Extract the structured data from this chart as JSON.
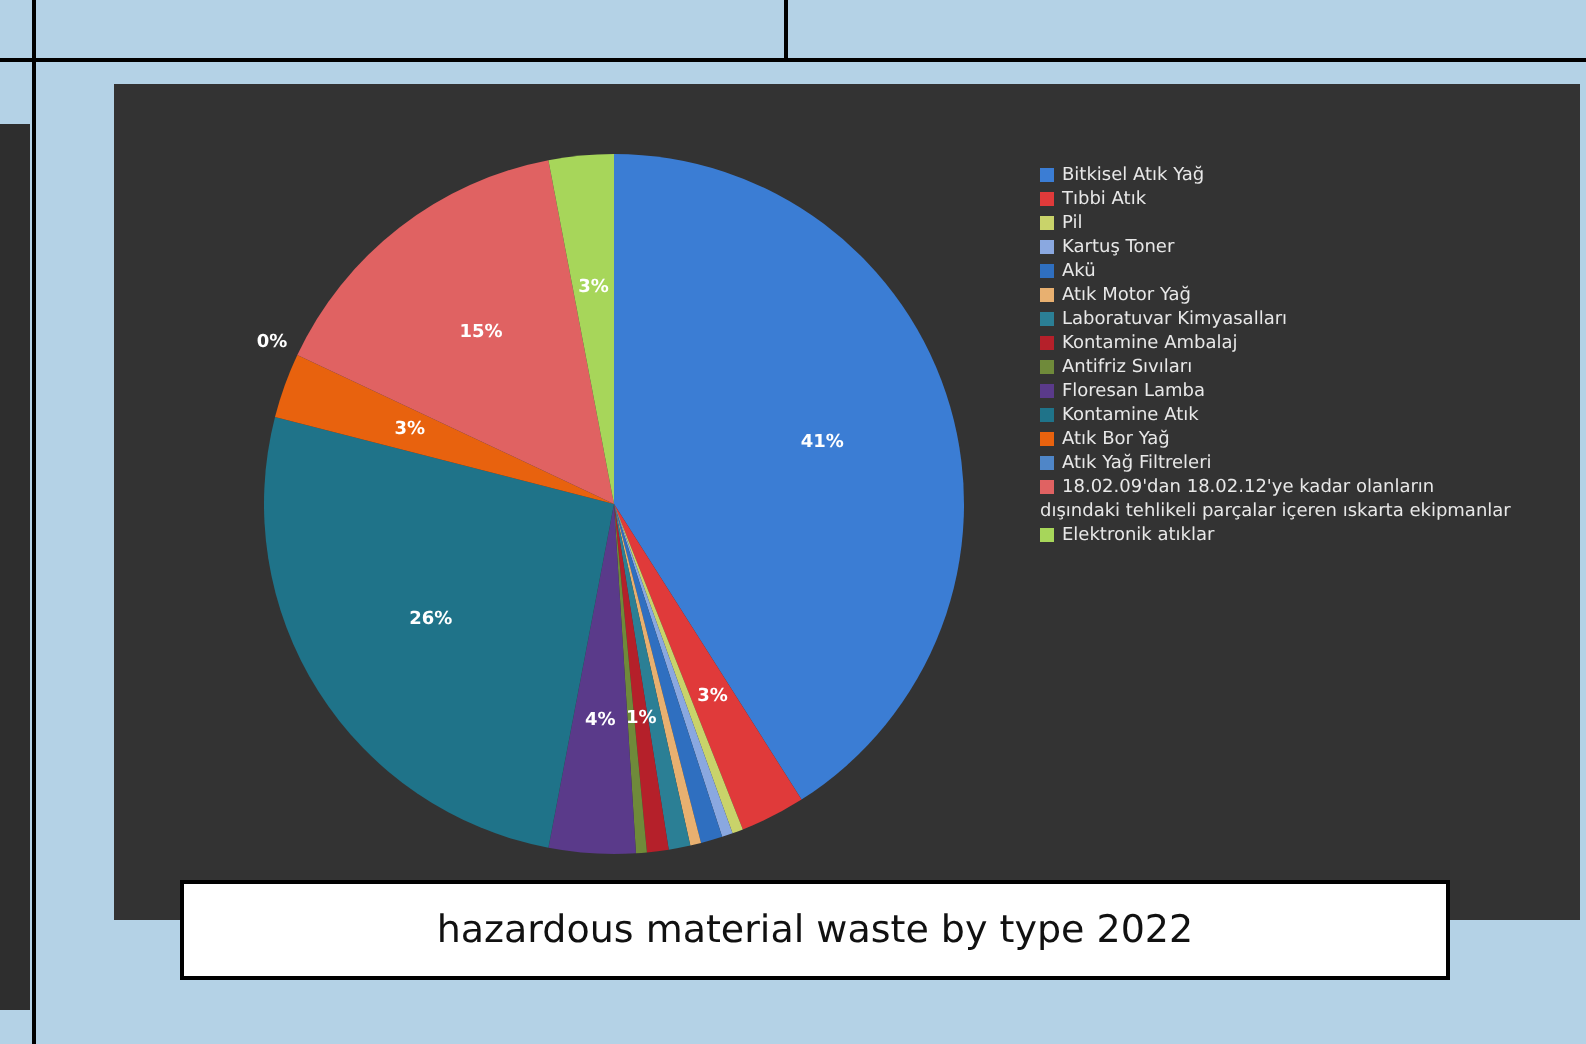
{
  "chart_data": {
    "type": "pie",
    "title": "hazardous material waste by type 2022",
    "legend": "right",
    "categories": [
      "Bitkisel Atık Yağ",
      "Tıbbi Atık",
      "Pil",
      "Kartuş Toner",
      "Akü",
      "Atık Motor Yağ",
      "Laboratuvar Kimyasalları",
      "Kontamine Ambalaj",
      "Antifriz Sıvıları",
      "Floresan Lamba",
      "Kontamine Atık",
      "Atık Bor Yağ",
      "Atık Yağ Filtreleri",
      "18.02.09'dan 18.02.12'ye kadar olanların dışındaki tehlikeli parçalar içeren ıskarta ekipmanlar",
      "Elektronik atıklar"
    ],
    "values": [
      41,
      3,
      0.5,
      0.5,
      1,
      0.5,
      1,
      1,
      0.5,
      4,
      26,
      3,
      0,
      15,
      3
    ],
    "value_labels": [
      "41%",
      "3%",
      null,
      null,
      null,
      null,
      null,
      "1%",
      null,
      "4%",
      "26%",
      "3%",
      "0%",
      "15%",
      "3%"
    ],
    "colors": [
      "#3b7dd4",
      "#e03a3a",
      "#c9d36a",
      "#8aa8e0",
      "#2f6fc0",
      "#e8b070",
      "#2b7f95",
      "#b5202a",
      "#6f8a3a",
      "#5a3a8a",
      "#1f7389",
      "#e8620e",
      "#4f86c8",
      "#e06262",
      "#a7d65a"
    ]
  }
}
